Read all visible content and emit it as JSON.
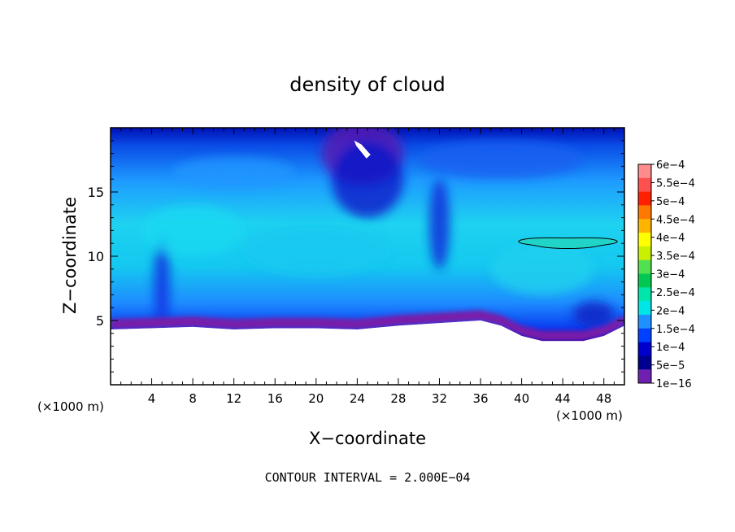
{
  "chart_data": {
    "type": "heatmap",
    "title": "density of cloud",
    "xlabel": "X−coordinate",
    "ylabel": "Z−coordinate",
    "x_unit_left": "(×1000 m)",
    "x_unit_right": "(×1000 m)",
    "footnote": "CONTOUR INTERVAL = 2.000E−04",
    "xlim": [
      0,
      50
    ],
    "ylim": [
      0,
      20
    ],
    "xticks": [
      4,
      8,
      12,
      16,
      20,
      24,
      28,
      32,
      36,
      40,
      44,
      48
    ],
    "yticks": [
      5,
      10,
      15
    ],
    "colorbar": {
      "labels": [
        "6e−4",
        "5.5e−4",
        "5e−4",
        "4.5e−4",
        "4e−4",
        "3.5e−4",
        "3e−4",
        "2.5e−4",
        "2e−4",
        "1.5e−4",
        "1e−4",
        "5e−5",
        "1e−16"
      ],
      "colors": [
        "#ff8c8c",
        "#ff5050",
        "#ff2000",
        "#ff7800",
        "#ffb400",
        "#ffff00",
        "#c8f000",
        "#50e050",
        "#00c850",
        "#00e6aa",
        "#00e6e6",
        "#1e90ff",
        "#0040ff",
        "#0000cd",
        "#000090",
        "#7020b0"
      ]
    },
    "cloud_base_km": 4.5,
    "cloud_top_km": 20,
    "max_region": {
      "x": [
        40,
        49
      ],
      "z": [
        10.5,
        11.5
      ],
      "value": "2e−4"
    }
  }
}
